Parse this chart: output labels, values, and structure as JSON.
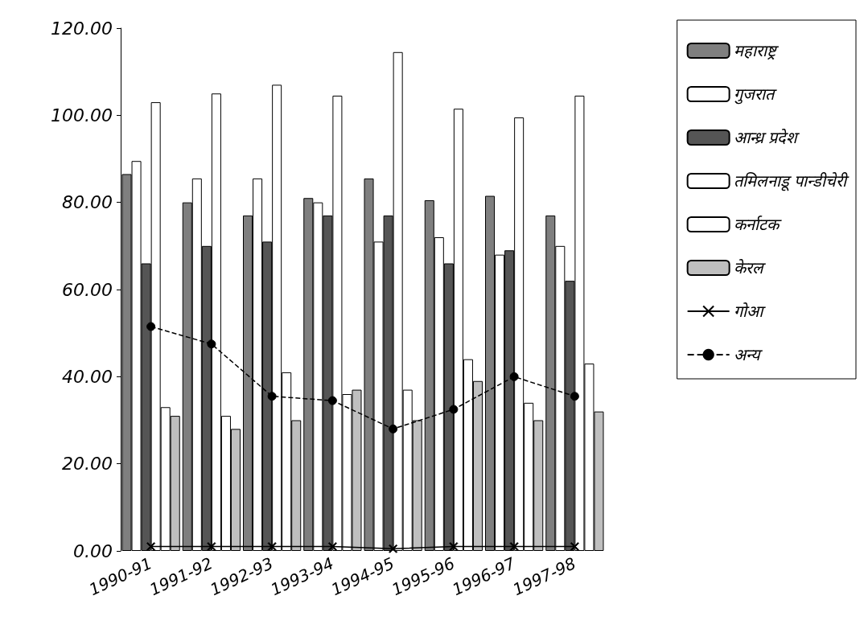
{
  "chart_data": {
    "type": "bar",
    "categories": [
      "1990-91",
      "1991-92",
      "1992-93",
      "1993-94",
      "1994-95",
      "1995-96",
      "1996-97",
      "1997-98"
    ],
    "series": [
      {
        "name": "महाराष्ट्र",
        "color": "#7f7f7f",
        "values": [
          86.5,
          80,
          77,
          81,
          85.5,
          80.5,
          81.5,
          77
        ]
      },
      {
        "name": "गुजरात",
        "color": "#ffffff",
        "values": [
          89.5,
          85.5,
          85.5,
          80,
          71,
          72,
          68,
          70
        ]
      },
      {
        "name": "आन्ध्र प्रदेश",
        "color": "#555555",
        "values": [
          66,
          70,
          71,
          77,
          77,
          66,
          69,
          62
        ]
      },
      {
        "name": "तमिलनाडू पान्डीचेरी",
        "color": "#ffffff",
        "values": [
          103,
          105,
          107,
          104.5,
          114.5,
          101.5,
          99.5,
          104.5
        ]
      },
      {
        "name": "कर्नाटक",
        "color": "#ffffff",
        "values": [
          33,
          31,
          41,
          36,
          37,
          44,
          34,
          43
        ]
      },
      {
        "name": "केरल",
        "color": "#bfbfbf",
        "values": [
          31,
          28,
          30,
          37,
          30,
          39,
          30,
          32
        ]
      },
      {
        "name": "गोआ",
        "type": "line",
        "color": "#000000",
        "marker": "cross",
        "line_style": "solid",
        "values": [
          1,
          1,
          1,
          1,
          0.5,
          1,
          1,
          1
        ]
      },
      {
        "name": "अन्य",
        "type": "line",
        "color": "#000000",
        "marker": "circle",
        "line_style": "dashed",
        "values": [
          51.5,
          47.5,
          35.5,
          34.5,
          28,
          32.5,
          40,
          35.5
        ]
      }
    ],
    "ylim": [
      0,
      120
    ],
    "yticks": [
      {
        "value": 0,
        "label": "0.00"
      },
      {
        "value": 20,
        "label": "20.00"
      },
      {
        "value": 40,
        "label": "40.00"
      },
      {
        "value": 60,
        "label": "60.00"
      },
      {
        "value": 80,
        "label": "80.00"
      },
      {
        "value": 100,
        "label": "100.00"
      },
      {
        "value": 120,
        "label": "120.00"
      }
    ],
    "grid": false,
    "legend": "right"
  }
}
